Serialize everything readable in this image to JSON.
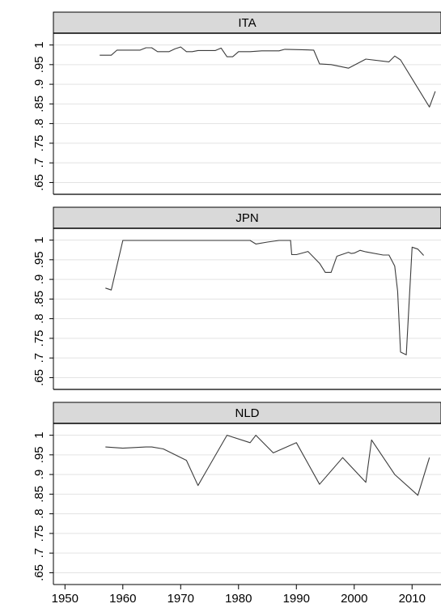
{
  "chart_data": {
    "type": "line",
    "layout": "small-multiples",
    "grid": true,
    "line_color": "#3c3c3c",
    "strip_color": "#d9d9d9",
    "x_ticks": [
      1950,
      1960,
      1970,
      1980,
      1990,
      2000,
      2010
    ],
    "xlim": [
      1948,
      2015
    ],
    "y_ticks": [
      0.65,
      0.7,
      0.75,
      0.8,
      0.85,
      0.9,
      0.95,
      1
    ],
    "y_tick_labels": [
      ".65",
      ".7",
      ".75",
      ".8",
      ".85",
      ".9",
      ".95",
      "1"
    ],
    "ylim": [
      0.62,
      1.03
    ],
    "panels": [
      {
        "title": "ITA",
        "x": [
          1956,
          1958,
          1959,
          1961,
          1963,
          1964,
          1965,
          1966,
          1967,
          1968,
          1969,
          1970,
          1971,
          1972,
          1973,
          1975,
          1976,
          1977,
          1978,
          1979,
          1980,
          1981,
          1982,
          1984,
          1985,
          1987,
          1988,
          1991,
          1993,
          1994,
          1996,
          1999,
          2002,
          2006,
          2007,
          2008,
          2013,
          2014
        ],
        "y": [
          0.974,
          0.974,
          0.987,
          0.987,
          0.987,
          0.993,
          0.993,
          0.983,
          0.983,
          0.983,
          0.99,
          0.995,
          0.983,
          0.983,
          0.986,
          0.986,
          0.986,
          0.992,
          0.97,
          0.97,
          0.983,
          0.983,
          0.983,
          0.985,
          0.985,
          0.985,
          0.989,
          0.988,
          0.987,
          0.952,
          0.95,
          0.941,
          0.964,
          0.957,
          0.972,
          0.962,
          0.842,
          0.882
        ]
      },
      {
        "title": "JPN",
        "x": [
          1957,
          1958,
          1960,
          1961,
          1975,
          1982,
          1983,
          1985,
          1987,
          1989,
          1989.2,
          1990,
          1991,
          1992,
          1994,
          1995,
          1996,
          1997,
          1999,
          1999.5,
          2000,
          2001,
          2002,
          2005,
          2006,
          2007,
          2007.5,
          2008,
          2009,
          2010,
          2011,
          2012
        ],
        "y": [
          0.878,
          0.873,
          0.999,
          0.999,
          0.999,
          0.999,
          0.99,
          0.995,
          0.999,
          0.999,
          0.963,
          0.963,
          0.967,
          0.971,
          0.941,
          0.918,
          0.918,
          0.959,
          0.969,
          0.966,
          0.967,
          0.974,
          0.97,
          0.962,
          0.962,
          0.934,
          0.87,
          0.715,
          0.708,
          0.982,
          0.977,
          0.961
        ]
      },
      {
        "title": "NLD",
        "x": [
          1957,
          1960,
          1964,
          1965,
          1967,
          1971,
          1973,
          1978,
          1982,
          1983,
          1986,
          1990,
          1994,
          1998,
          2002,
          2003,
          2007,
          2011,
          2013
        ],
        "y": [
          0.97,
          0.967,
          0.97,
          0.97,
          0.965,
          0.936,
          0.872,
          1.0,
          0.981,
          1.0,
          0.955,
          0.981,
          0.875,
          0.943,
          0.88,
          0.988,
          0.9,
          0.847,
          0.943
        ]
      }
    ]
  }
}
